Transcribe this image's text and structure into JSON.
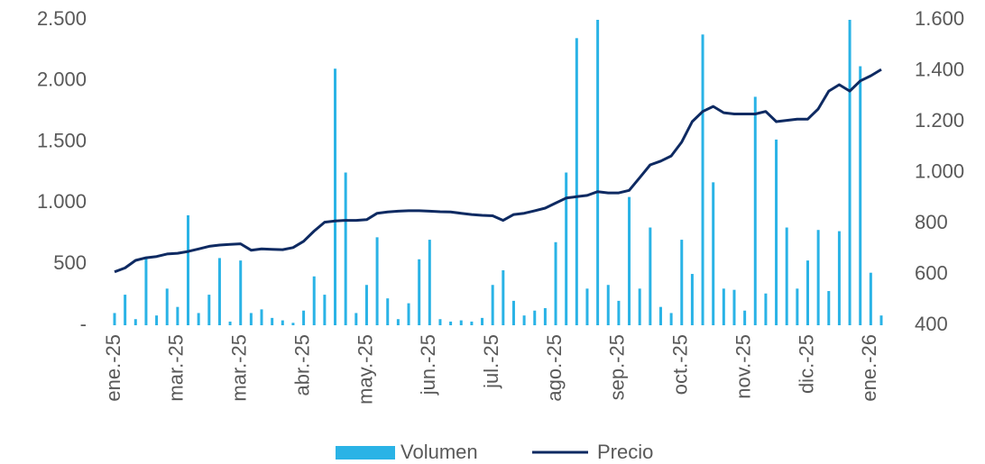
{
  "chart_data": {
    "type": "bar-line",
    "categories": [
      "ene.-25",
      null,
      null,
      null,
      null,
      null,
      "mar.-25",
      null,
      null,
      null,
      null,
      null,
      "mar.-25",
      null,
      null,
      null,
      null,
      null,
      "abr.-25",
      null,
      null,
      null,
      null,
      null,
      "may.-25",
      null,
      null,
      null,
      null,
      null,
      "jun.-25",
      null,
      null,
      null,
      null,
      null,
      "jul.-25",
      null,
      null,
      null,
      null,
      null,
      "ago.-25",
      null,
      null,
      null,
      null,
      null,
      "sep.-25",
      null,
      null,
      null,
      null,
      null,
      "oct.-25",
      null,
      null,
      null,
      null,
      null,
      "nov.-25",
      null,
      null,
      null,
      null,
      null,
      "dic.-25",
      null,
      null,
      null,
      null,
      null,
      "ene.-26",
      null
    ],
    "series": [
      {
        "name": "Volumen",
        "color": "#2ab3e6",
        "values": [
          100,
          250,
          50,
          550,
          80,
          300,
          150,
          900,
          100,
          250,
          550,
          30,
          530,
          100,
          130,
          60,
          40,
          20,
          120,
          400,
          250,
          2100,
          1250,
          100,
          330,
          720,
          220,
          50,
          180,
          540,
          700,
          50,
          30,
          40,
          30,
          60,
          330,
          450,
          200,
          80,
          120,
          140,
          680,
          1250,
          2350,
          300,
          2500,
          330,
          200,
          1050,
          300,
          800,
          150,
          100,
          700,
          420,
          2380,
          1170,
          300,
          290,
          120,
          1870,
          260,
          1520,
          800,
          300,
          530,
          780,
          280,
          770,
          2500,
          2120,
          430,
          80
        ]
      },
      {
        "name": "Precio",
        "color": "#0e2a62",
        "axis": "y2",
        "values": [
          610,
          625,
          655,
          665,
          670,
          680,
          683,
          690,
          700,
          710,
          715,
          718,
          720,
          695,
          700,
          698,
          697,
          705,
          730,
          770,
          805,
          810,
          812,
          812,
          815,
          840,
          845,
          848,
          850,
          850,
          848,
          846,
          845,
          840,
          835,
          832,
          830,
          812,
          835,
          840,
          850,
          860,
          880,
          900,
          905,
          910,
          925,
          920,
          920,
          930,
          980,
          1030,
          1045,
          1065,
          1120,
          1200,
          1240,
          1260,
          1235,
          1230,
          1230,
          1230,
          1240,
          1200,
          1205,
          1210,
          1210,
          1250,
          1320,
          1345,
          1320,
          1360,
          1380,
          1405
        ]
      }
    ],
    "ylim": [
      0,
      2500
    ],
    "yticks": [
      {
        "value": 0,
        "label": "-"
      },
      500,
      {
        "value": 1000,
        "label": "1.000"
      },
      {
        "value": 1500,
        "label": "1.500"
      },
      {
        "value": 2000,
        "label": "2.000"
      },
      {
        "value": 2500,
        "label": "2.500"
      }
    ],
    "y2lim": [
      400,
      1600
    ],
    "y2ticks": [
      400,
      600,
      800,
      {
        "value": 1000,
        "label": "1.000"
      },
      {
        "value": 1200,
        "label": "1.200"
      },
      {
        "value": 1400,
        "label": "1.400"
      },
      {
        "value": 1600,
        "label": "1.600"
      }
    ],
    "grid": false,
    "legend": "bottom"
  }
}
